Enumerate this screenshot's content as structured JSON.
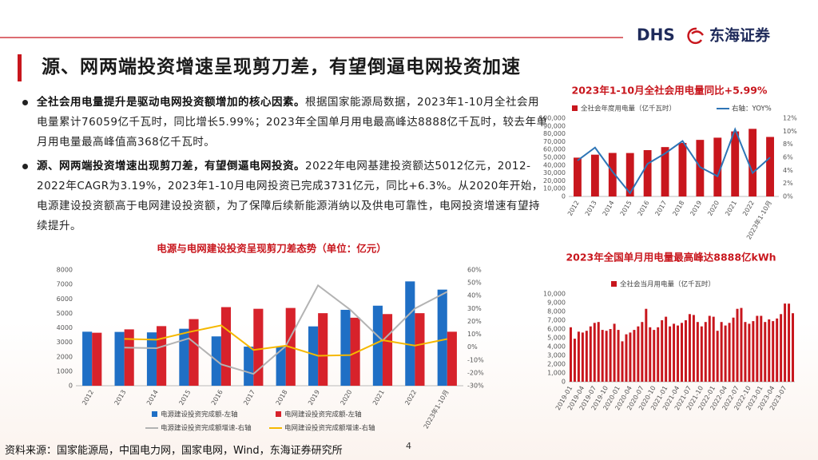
{
  "logo": {
    "en": "DHS",
    "cn": "东海证券"
  },
  "title": "源、网两端投资增速呈现剪刀差，有望倒逼电网投资加速",
  "bullets": [
    {
      "lead": "全社会用电量提升是驱动电网投资额增加的核心因素。",
      "text": "根据国家能源局数据，2023年1-10月全社会用电量累计76059亿千瓦时，同比增长5.99%；2023年全国单月用电最高峰达8888亿千瓦时，较去年单月用电量最高峰值高368亿千瓦时。"
    },
    {
      "lead": "源、网两端投资增速出现剪刀差，有望倒逼电网投资。",
      "text": "2022年电网基建投资额达5012亿元，2012-2022年CAGR为3.19%，2023年1-10月电网投资已完成3731亿元，同比+6.3%。从2020年开始，电源建设投资额高于电网建设投资额，为了保障后续新能源消纳以及供电可靠性，电网投资增速有望持续提升。"
    }
  ],
  "source": "资料来源：国家能源局，中国电力网，国家电网，Wind，东海证券研究所",
  "page_number": "4",
  "chart_data": [
    {
      "type": "combo",
      "title": "2023年1-10月全社会用电量同比+5.99%",
      "categories": [
        "2012",
        "2013",
        "2014",
        "2015",
        "2016",
        "2017",
        "2018",
        "2019",
        "2020",
        "2021",
        "2022",
        "2023年1-10月"
      ],
      "series": [
        {
          "name": "全社会年度用电量（亿千瓦时）",
          "type": "bar",
          "color": "#c8161d",
          "values": [
            49600,
            53400,
            55600,
            55500,
            59200,
            63100,
            68400,
            72300,
            75100,
            83100,
            86400,
            76059
          ]
        },
        {
          "name": "右轴：YOY%",
          "type": "line",
          "axis": "y2",
          "color": "#2e75b6",
          "values": [
            5.5,
            7.5,
            3.8,
            0.5,
            5.0,
            6.6,
            8.5,
            4.5,
            3.1,
            10.3,
            3.6,
            5.99
          ]
        }
      ],
      "ylim": [
        0,
        100000
      ],
      "yticks": [
        0,
        {
          "value": 10000,
          "label": "10,000"
        },
        {
          "value": 20000,
          "label": "20,000"
        },
        {
          "value": 30000,
          "label": "30,000"
        },
        {
          "value": 40000,
          "label": "40,000"
        },
        {
          "value": 50000,
          "label": "50,000"
        },
        {
          "value": 60000,
          "label": "60,000"
        },
        {
          "value": 70000,
          "label": "70,000"
        },
        {
          "value": 80000,
          "label": "80,000"
        },
        {
          "value": 90000,
          "label": "90,000"
        },
        {
          "value": 100000,
          "label": "100,000"
        }
      ],
      "y2lim": [
        0,
        12
      ],
      "y2ticks": [
        {
          "value": 0,
          "label": "0%"
        },
        {
          "value": 2,
          "label": "2%"
        },
        {
          "value": 4,
          "label": "4%"
        },
        {
          "value": 6,
          "label": "6%"
        },
        {
          "value": 8,
          "label": "8%"
        },
        {
          "value": 10,
          "label": "10%"
        },
        {
          "value": 12,
          "label": "12%"
        }
      ],
      "grid": false
    },
    {
      "type": "combo",
      "title": "电源与电网建设投资呈现剪刀差态势（单位：亿元）",
      "categories": [
        "2012",
        "2013",
        "2014",
        "2015",
        "2016",
        "2017",
        "2018",
        "2019",
        "2020",
        "2021",
        "2022",
        "2023年1-10月"
      ],
      "series": [
        {
          "name": "电源建设投资完成额-左轴",
          "type": "bar",
          "color": "#1f6fc5",
          "values": [
            3732,
            3717,
            3686,
            3936,
            3408,
            2700,
            2721,
            4100,
            5244,
            5530,
            7208,
            6640
          ]
        },
        {
          "name": "电网建设投资完成额-左轴",
          "type": "bar",
          "color": "#d7222b",
          "values": [
            3661,
            3894,
            4118,
            4603,
            5431,
            5315,
            5373,
            5012,
            4699,
            4951,
            5012,
            3731
          ]
        },
        {
          "name": "电源建设投资完成额增速-右轴",
          "type": "line",
          "axis": "y2",
          "color": "#b3b3b3",
          "values": [
            null,
            -0.4,
            -0.8,
            6.8,
            -13.4,
            -20.8,
            0.8,
            48,
            29,
            5,
            30,
            43
          ]
        },
        {
          "name": "电网建设投资完成额增速-右轴",
          "type": "line",
          "axis": "y2",
          "color": "#f5b800",
          "values": [
            null,
            6.4,
            5.8,
            11.7,
            16.9,
            -2.2,
            1.1,
            -6.7,
            -6.2,
            5.4,
            1.2,
            6.3
          ]
        }
      ],
      "ylim": [
        0,
        8000
      ],
      "yticks": [
        0,
        1000,
        2000,
        3000,
        4000,
        5000,
        6000,
        7000,
        8000
      ],
      "y2lim": [
        -30,
        60
      ],
      "y2ticks": [
        {
          "value": -30,
          "label": "-30%"
        },
        {
          "value": -20,
          "label": "-20%"
        },
        {
          "value": -10,
          "label": "-10%"
        },
        {
          "value": 0,
          "label": "0%"
        },
        {
          "value": 10,
          "label": "10%"
        },
        {
          "value": 20,
          "label": "20%"
        },
        {
          "value": 30,
          "label": "30%"
        },
        {
          "value": 40,
          "label": "40%"
        },
        {
          "value": 50,
          "label": "50%"
        },
        {
          "value": 60,
          "label": "60%"
        }
      ],
      "grid": false
    },
    {
      "type": "combo",
      "title": "2023年全国单月用电量最高峰达8888亿kWh",
      "categories": [
        "2019-01",
        null,
        null,
        "2019-04",
        null,
        null,
        "2019-07",
        null,
        null,
        "2019-10",
        null,
        null,
        "2020-01",
        null,
        null,
        "2020-04",
        null,
        null,
        "2020-07",
        null,
        null,
        "2020-10",
        null,
        null,
        "2021-01",
        null,
        null,
        "2021-04",
        null,
        null,
        "2021-07",
        null,
        null,
        "2021-10",
        null,
        null,
        "2022-01",
        null,
        null,
        "2022-04",
        null,
        null,
        "2022-07",
        null,
        null,
        "2022-10",
        null,
        null,
        "2023-01",
        null,
        null,
        "2023-04",
        null,
        null,
        "2023-07",
        null,
        null
      ],
      "series": [
        {
          "name": "全社会当月用电量（亿千瓦时）",
          "type": "bar",
          "color": "#c8161d",
          "values": [
            6200,
            4900,
            5700,
            5600,
            5800,
            6300,
            6700,
            6800,
            5900,
            5800,
            6000,
            6600,
            5900,
            4600,
            5400,
            5600,
            5900,
            6300,
            6800,
            8300,
            6200,
            5900,
            6200,
            7000,
            7400,
            6300,
            6600,
            6400,
            6700,
            7000,
            7700,
            7600,
            6800,
            6300,
            6800,
            7500,
            7400,
            5800,
            6800,
            6400,
            6700,
            7300,
            8300,
            8400,
            6800,
            6600,
            6900,
            7500,
            7500,
            6800,
            7100,
            6900,
            7200,
            7700,
            8900,
            8888,
            7800
          ]
        }
      ],
      "ylim": [
        0,
        10000
      ],
      "yticks": [
        0,
        {
          "value": 1000,
          "label": "1,000"
        },
        {
          "value": 2000,
          "label": "2,000"
        },
        {
          "value": 3000,
          "label": "3,000"
        },
        {
          "value": 4000,
          "label": "4,000"
        },
        {
          "value": 5000,
          "label": "5,000"
        },
        {
          "value": 6000,
          "label": "6,000"
        },
        {
          "value": 7000,
          "label": "7,000"
        },
        {
          "value": 8000,
          "label": "8,000"
        },
        {
          "value": 9000,
          "label": "9,000"
        },
        {
          "value": 10000,
          "label": "10,000"
        }
      ],
      "grid": false
    }
  ]
}
